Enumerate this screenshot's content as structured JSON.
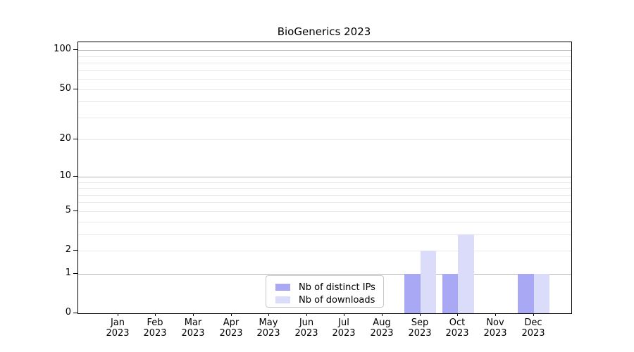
{
  "figure": {
    "title": "BioGenerics 2023"
  },
  "chart_data": {
    "type": "bar",
    "title": "BioGenerics 2023",
    "categories": [
      {
        "month": "Jan",
        "year": "2023"
      },
      {
        "month": "Feb",
        "year": "2023"
      },
      {
        "month": "Mar",
        "year": "2023"
      },
      {
        "month": "Apr",
        "year": "2023"
      },
      {
        "month": "May",
        "year": "2023"
      },
      {
        "month": "Jun",
        "year": "2023"
      },
      {
        "month": "Jul",
        "year": "2023"
      },
      {
        "month": "Aug",
        "year": "2023"
      },
      {
        "month": "Sep",
        "year": "2023"
      },
      {
        "month": "Oct",
        "year": "2023"
      },
      {
        "month": "Nov",
        "year": "2023"
      },
      {
        "month": "Dec",
        "year": "2023"
      }
    ],
    "series": [
      {
        "name": "Nb of distinct IPs",
        "color": "#a8a8f5",
        "values": [
          0,
          0,
          0,
          0,
          0,
          0,
          0,
          0,
          1,
          1,
          0,
          1
        ]
      },
      {
        "name": "Nb of downloads",
        "color": "#dbdbfa",
        "values": [
          0,
          0,
          0,
          0,
          0,
          0,
          0,
          0,
          2,
          3,
          0,
          1
        ]
      }
    ],
    "xlabel": "",
    "ylabel": "",
    "yscale": "log1p",
    "ylim": [
      0,
      115
    ],
    "yticks": [
      {
        "value": 0,
        "label": "0"
      },
      {
        "value": 1,
        "label": "1"
      },
      {
        "value": 2,
        "label": "2"
      },
      {
        "value": 5,
        "label": "5"
      },
      {
        "value": 10,
        "label": "10"
      },
      {
        "value": 20,
        "label": "20"
      },
      {
        "value": 50,
        "label": "50"
      },
      {
        "value": 100,
        "label": "100"
      }
    ],
    "grid_major": [
      1,
      10,
      100
    ],
    "grid_minor": [
      2,
      3,
      4,
      5,
      6,
      7,
      8,
      9,
      20,
      30,
      40,
      50,
      60,
      70,
      80,
      90
    ],
    "grid": true,
    "legend_position": "inside lower center",
    "colors": {
      "major_grid": "#b5b5b5",
      "minor_grid": "#e8e8e8",
      "axis": "#000000",
      "text": "#000000",
      "legend_border": "#c9c9c9",
      "background": "#ffffff"
    }
  }
}
